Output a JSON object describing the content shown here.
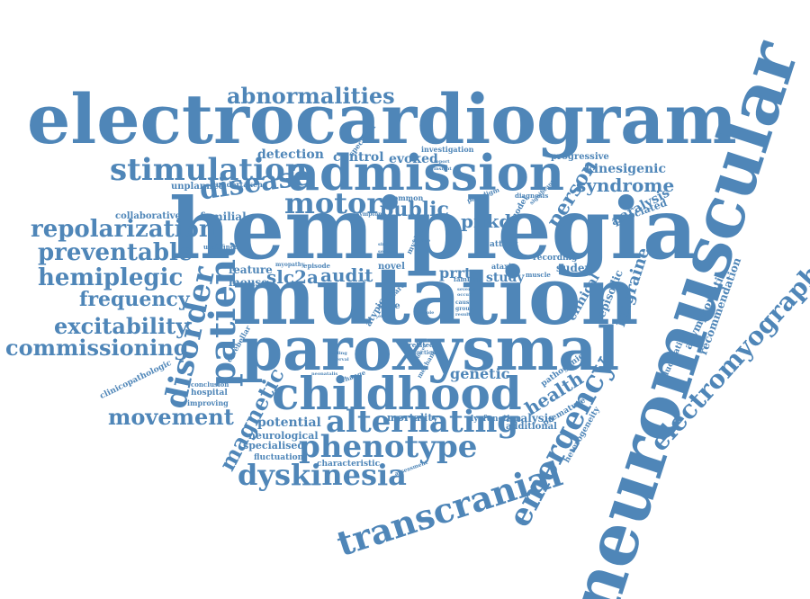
{
  "palette": {
    "word": "#4f86b8",
    "background": "#ffffff"
  },
  "words": [
    "electrocardiogram",
    "hemiplegia",
    "mutation",
    "paroxysmal",
    "neuromuscular",
    "admission",
    "childhood",
    "stimulation",
    "abnormalities",
    "motor",
    "disease",
    "transcranial",
    "phenotype",
    "alternating",
    "dyskinesia",
    "movement",
    "emergency",
    "electromyography",
    "patient",
    "disorder",
    "repolarization",
    "preventable",
    "hemiplegic",
    "frequency",
    "excitability",
    "commissioning",
    "magnetic",
    "public",
    "person",
    "syndrome",
    "pnkd",
    "detection",
    "control",
    "evoked",
    "kinesigenic",
    "health",
    "genetic",
    "audit",
    "slc2a",
    "study",
    "prrt",
    "migraine",
    "clinical",
    "episodic",
    "sudep",
    "asymptomatic",
    "recommendation",
    "paralysis",
    "associated",
    "familial",
    "feature",
    "mouse",
    "potential",
    "neurological",
    "specialised",
    "fluctuation",
    "characteristic",
    "analysis",
    "additional",
    "mortality",
    "dysfunction",
    "heterogeneity",
    "premature",
    "pathogenic",
    "fluctuating",
    "collaborative",
    "unplanned",
    "undertaken",
    "investigation",
    "spectrum",
    "progressive",
    "paradigm",
    "diagnosis",
    "common",
    "model",
    "symptom",
    "undefined",
    "myalgia",
    "attack",
    "recording",
    "muscle",
    "ataxia",
    "families",
    "novel",
    "myopathy",
    "episode",
    "case",
    "atypical",
    "cerebellar",
    "hospital",
    "conclusion",
    "improving",
    "clinicopathologic",
    "related",
    "function",
    "change",
    "mechanism",
    "neonatalis",
    "care",
    "cause",
    "group",
    "result",
    "several",
    "occur",
    "reduced",
    "effect",
    "whole",
    "basis",
    "decline",
    "finding",
    "interval",
    "assessment",
    "significant",
    "report",
    "single",
    "series",
    "insight"
  ]
}
